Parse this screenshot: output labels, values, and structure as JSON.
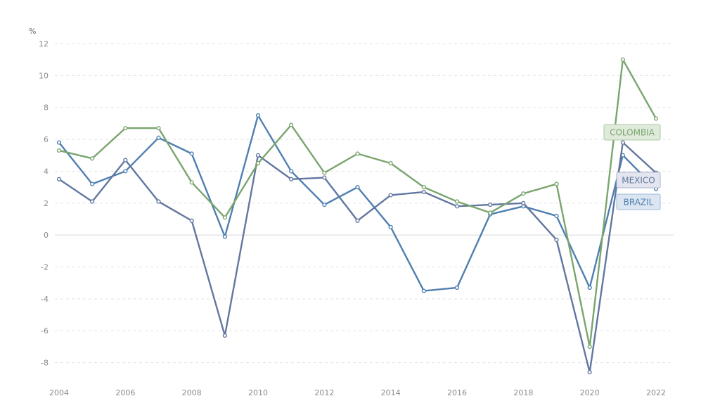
{
  "chart_data": {
    "type": "line",
    "title": "",
    "xlabel": "",
    "ylabel": "%",
    "ylim": [
      -9,
      12
    ],
    "xlim": [
      2004,
      2022
    ],
    "grid": true,
    "y_ticks": [
      "12",
      "10",
      "8",
      "6",
      "4",
      "2",
      "0",
      "-2",
      "-4",
      "-6",
      "-8"
    ],
    "x_ticks": [
      "2004",
      "2006",
      "2008",
      "2010",
      "2012",
      "2014",
      "2016",
      "2018",
      "2020",
      "2022"
    ],
    "x": [
      2004,
      2005,
      2006,
      2007,
      2008,
      2009,
      2010,
      2011,
      2012,
      2013,
      2014,
      2015,
      2016,
      2017,
      2018,
      2019,
      2020,
      2021,
      2022
    ],
    "series": [
      {
        "name": "COLOMBIA",
        "color": "#7aa56e",
        "values": [
          5.3,
          4.8,
          6.7,
          6.7,
          3.3,
          1.1,
          4.5,
          6.9,
          3.9,
          5.1,
          4.5,
          3.0,
          2.1,
          1.4,
          2.6,
          3.2,
          -7.0,
          11.0,
          7.3
        ]
      },
      {
        "name": "MEXICO",
        "color": "#6277a0",
        "values": [
          3.5,
          2.1,
          4.7,
          2.1,
          0.9,
          -6.3,
          5.0,
          3.5,
          3.6,
          0.9,
          2.5,
          2.7,
          1.8,
          1.9,
          2.0,
          -0.3,
          -8.6,
          5.8,
          3.9
        ]
      },
      {
        "name": "BRAZIL",
        "color": "#4f7fb0",
        "values": [
          5.8,
          3.2,
          4.0,
          6.1,
          5.1,
          -0.1,
          7.5,
          4.0,
          1.9,
          3.0,
          0.5,
          -3.5,
          -3.3,
          1.3,
          1.8,
          1.2,
          -3.3,
          5.0,
          2.9
        ]
      }
    ],
    "label_style": {
      "COLOMBIA": {
        "fill": "#dfeadb",
        "stroke": "#a9c79f"
      },
      "MEXICO": {
        "fill": "#e3e6ef",
        "stroke": "#a9b4cc"
      },
      "BRAZIL": {
        "fill": "#dbe6f2",
        "stroke": "#9fbbd9"
      }
    }
  }
}
